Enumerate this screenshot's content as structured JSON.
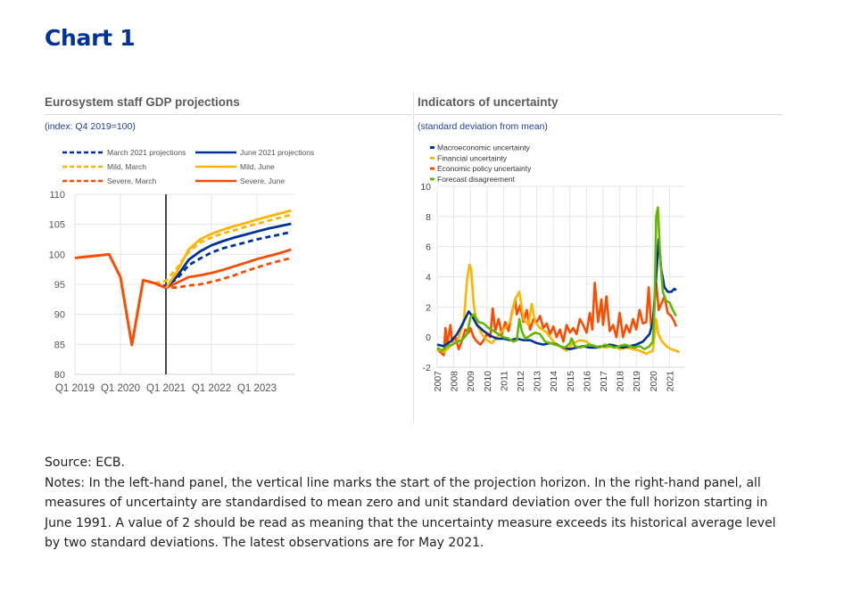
{
  "page": {
    "title": "Chart 1",
    "source": "Source: ECB.",
    "notes": "Notes: In the left-hand panel, the vertical line marks the start of the projection horizon. In the right-hand panel, all measures of uncertainty are standardised to mean zero and unit standard deviation over the full horizon starting in June 1991. A value of 2 should be read as meaning that the uncertainty measure exceeds its historical average level by two standard deviations. The latest observations are for May 2021."
  },
  "chart_data": [
    {
      "type": "line",
      "title": "Eurosystem staff GDP projections",
      "subtitle": "(index: Q4 2019=100)",
      "xlabel": "",
      "ylabel": "",
      "ylim": [
        80,
        110
      ],
      "yticks": [
        80,
        85,
        90,
        95,
        100,
        105,
        110
      ],
      "xticks": [
        "Q1 2019",
        "Q1 2020",
        "Q1 2021",
        "Q1 2022",
        "Q1 2023"
      ],
      "x_range_quarters": [
        "Q1 2019",
        "Q4 2023"
      ],
      "grid": true,
      "legend_position": "top",
      "annotation": "vertical line at Q1 2021 marking start of projection horizon",
      "vline_at": "Q1 2021",
      "quarters": [
        "Q1 2019",
        "Q2 2019",
        "Q3 2019",
        "Q4 2019",
        "Q1 2020",
        "Q2 2020",
        "Q3 2020",
        "Q4 2020",
        "Q1 2021",
        "Q2 2021",
        "Q3 2021",
        "Q4 2021",
        "Q1 2022",
        "Q2 2022",
        "Q3 2022",
        "Q4 2022",
        "Q1 2023",
        "Q2 2023",
        "Q3 2023",
        "Q4 2023"
      ],
      "history": {
        "name": "Historical GDP",
        "color": "#ff4b00",
        "values": [
          99.4,
          99.6,
          99.8,
          100.0,
          96.2,
          84.9,
          95.7,
          95.2,
          94.4
        ]
      },
      "series": [
        {
          "name": "March 2021 projections",
          "color": "#003299",
          "dash": true,
          "start_index": 7,
          "values": [
            95.2,
            94.7,
            96.0,
            98.2,
            99.3,
            100.3,
            101.0,
            101.5,
            102.0,
            102.5,
            102.9,
            103.3,
            103.7
          ]
        },
        {
          "name": "June 2021 projections",
          "color": "#003299",
          "dash": false,
          "start_index": 8,
          "values": [
            94.4,
            96.4,
            99.1,
            100.5,
            101.5,
            102.2,
            102.8,
            103.3,
            103.8,
            104.3,
            104.7,
            105.1
          ]
        },
        {
          "name": "Mild, March",
          "color": "#ffb400",
          "dash": true,
          "start_index": 7,
          "values": [
            95.2,
            95.6,
            97.8,
            100.4,
            102.0,
            102.8,
            103.5,
            104.0,
            104.6,
            105.1,
            105.6,
            106.1,
            106.6
          ]
        },
        {
          "name": "Mild, June",
          "color": "#ffb400",
          "dash": false,
          "start_index": 8,
          "values": [
            94.4,
            97.2,
            100.8,
            102.5,
            103.4,
            104.1,
            104.7,
            105.2,
            105.8,
            106.3,
            106.8,
            107.3
          ]
        },
        {
          "name": "Severe, March",
          "color": "#ff4b00",
          "dash": true,
          "start_index": 7,
          "values": [
            95.2,
            94.4,
            94.5,
            94.8,
            95.0,
            95.4,
            95.9,
            96.5,
            97.2,
            97.8,
            98.4,
            98.9,
            99.4
          ]
        },
        {
          "name": "Severe, June",
          "color": "#ff4b00",
          "dash": false,
          "start_index": 8,
          "values": [
            94.4,
            95.3,
            96.2,
            96.5,
            96.9,
            97.4,
            98.0,
            98.6,
            99.2,
            99.7,
            100.2,
            100.8
          ]
        }
      ]
    },
    {
      "type": "line",
      "title": "Indicators of uncertainty",
      "subtitle": "(standard deviation from mean)",
      "xlabel": "",
      "ylabel": "",
      "ylim": [
        -2,
        10
      ],
      "yticks": [
        -2,
        0,
        2,
        4,
        6,
        8,
        10
      ],
      "xticks": [
        "2007",
        "2008",
        "2009",
        "2010",
        "2011",
        "2012",
        "2013",
        "2014",
        "2015",
        "2016",
        "2017",
        "2018",
        "2019",
        "2020",
        "2021"
      ],
      "x_range": [
        2007.0,
        2021.9
      ],
      "grid": true,
      "legend_position": "top-left",
      "series": [
        {
          "name": "Macroeconomic uncertainty",
          "color": "#003299",
          "x": [
            2007.0,
            2007.4,
            2007.8,
            2008.2,
            2008.5,
            2008.9,
            2009.1,
            2009.4,
            2009.8,
            2010.2,
            2010.6,
            2011.0,
            2011.4,
            2011.8,
            2012.2,
            2012.6,
            2013.0,
            2013.4,
            2013.8,
            2014.2,
            2014.6,
            2015.0,
            2015.4,
            2015.8,
            2016.2,
            2016.6,
            2017.0,
            2017.4,
            2017.8,
            2018.2,
            2018.6,
            2019.0,
            2019.4,
            2019.8,
            2020.0,
            2020.2,
            2020.35,
            2020.5,
            2020.7,
            2020.9,
            2021.1,
            2021.3,
            2021.4
          ],
          "values": [
            -0.5,
            -0.6,
            -0.3,
            0.2,
            0.8,
            1.7,
            1.4,
            0.8,
            0.4,
            0.1,
            -0.1,
            -0.1,
            -0.2,
            -0.1,
            -0.2,
            -0.2,
            -0.4,
            -0.5,
            -0.4,
            -0.5,
            -0.7,
            -0.8,
            -0.7,
            -0.6,
            -0.7,
            -0.7,
            -0.6,
            -0.5,
            -0.6,
            -0.7,
            -0.6,
            -0.5,
            -0.3,
            0.2,
            1.0,
            4.0,
            6.5,
            4.5,
            3.3,
            3.0,
            3.0,
            3.2,
            3.1
          ]
        },
        {
          "name": "Financial uncertainty",
          "color": "#ffb400",
          "x": [
            2007.0,
            2007.4,
            2007.8,
            2008.2,
            2008.6,
            2008.8,
            2008.95,
            2009.05,
            2009.2,
            2009.4,
            2009.7,
            2010.0,
            2010.3,
            2010.6,
            2011.0,
            2011.4,
            2011.7,
            2011.95,
            2012.2,
            2012.5,
            2012.7,
            2012.9,
            2013.2,
            2013.6,
            2014.0,
            2014.4,
            2014.8,
            2015.2,
            2015.6,
            2016.0,
            2016.4,
            2016.8,
            2017.2,
            2017.6,
            2018.0,
            2018.4,
            2018.8,
            2019.2,
            2019.6,
            2020.0,
            2020.2,
            2020.3,
            2020.5,
            2020.8,
            2021.1,
            2021.4,
            2021.6
          ],
          "values": [
            -0.8,
            -1.0,
            -0.6,
            -0.3,
            1.0,
            3.8,
            4.8,
            4.5,
            2.2,
            0.8,
            0.2,
            -0.2,
            -0.4,
            0.0,
            0.5,
            1.0,
            2.5,
            3.0,
            1.2,
            0.8,
            2.2,
            1.0,
            0.6,
            0.3,
            -0.3,
            -0.6,
            -0.9,
            -0.4,
            -0.2,
            -0.3,
            -0.7,
            -0.6,
            -0.7,
            -0.5,
            -0.8,
            -0.7,
            -0.8,
            -0.9,
            -1.1,
            -0.9,
            1.2,
            0.3,
            -0.2,
            -0.6,
            -0.8,
            -0.9,
            -1.0
          ]
        },
        {
          "name": "Economic policy uncertainty",
          "color": "#ff4b00",
          "x": [
            2007.0,
            2007.2,
            2007.4,
            2007.5,
            2007.6,
            2007.8,
            2007.9,
            2008.1,
            2008.3,
            2008.5,
            2008.7,
            2008.9,
            2009.0,
            2009.2,
            2009.4,
            2009.6,
            2009.8,
            2010.0,
            2010.2,
            2010.35,
            2010.5,
            2010.7,
            2010.9,
            2011.1,
            2011.3,
            2011.5,
            2011.7,
            2011.8,
            2012.0,
            2012.2,
            2012.4,
            2012.6,
            2012.8,
            2013.0,
            2013.2,
            2013.4,
            2013.6,
            2013.8,
            2014.0,
            2014.2,
            2014.4,
            2014.6,
            2014.8,
            2015.0,
            2015.2,
            2015.4,
            2015.6,
            2015.8,
            2016.0,
            2016.2,
            2016.35,
            2016.5,
            2016.7,
            2016.9,
            2017.0,
            2017.2,
            2017.4,
            2017.6,
            2017.8,
            2018.0,
            2018.2,
            2018.4,
            2018.6,
            2018.8,
            2019.0,
            2019.2,
            2019.4,
            2019.6,
            2019.75,
            2019.9,
            2020.0,
            2020.2,
            2020.35,
            2020.5,
            2020.7,
            2020.9,
            2021.1,
            2021.3,
            2021.4
          ],
          "values": [
            -0.8,
            -1.0,
            -1.2,
            0.6,
            -0.5,
            0.8,
            -0.3,
            0.0,
            -0.8,
            -0.2,
            0.5,
            0.3,
            0.6,
            0.0,
            -0.3,
            -0.5,
            -0.2,
            0.2,
            0.0,
            1.9,
            0.4,
            1.2,
            0.2,
            1.0,
            0.4,
            1.6,
            2.5,
            1.5,
            2.1,
            1.0,
            1.8,
            0.5,
            1.2,
            1.0,
            1.4,
            0.6,
            0.9,
            0.2,
            0.7,
            0.0,
            0.5,
            -0.3,
            0.8,
            0.3,
            0.6,
            0.2,
            1.2,
            0.8,
            0.3,
            1.6,
            0.5,
            3.6,
            1.0,
            2.5,
            0.8,
            2.7,
            0.4,
            0.8,
            0.0,
            1.6,
            0.0,
            0.8,
            0.3,
            1.2,
            0.5,
            1.8,
            0.9,
            1.0,
            3.3,
            0.7,
            1.0,
            3.6,
            1.8,
            2.2,
            2.7,
            1.6,
            1.4,
            1.0,
            0.7
          ]
        },
        {
          "name": "Forecast disagreement",
          "color": "#65b800",
          "x": [
            2007.0,
            2007.3,
            2007.6,
            2007.9,
            2008.2,
            2008.5,
            2008.8,
            2009.0,
            2009.2,
            2009.5,
            2009.8,
            2010.1,
            2010.4,
            2010.7,
            2011.0,
            2011.3,
            2011.6,
            2011.8,
            2011.95,
            2012.1,
            2012.3,
            2012.6,
            2012.9,
            2013.2,
            2013.5,
            2013.8,
            2014.1,
            2014.4,
            2014.7,
            2015.0,
            2015.1,
            2015.3,
            2015.6,
            2015.9,
            2016.2,
            2016.5,
            2016.8,
            2017.1,
            2017.4,
            2017.7,
            2018.0,
            2018.3,
            2018.6,
            2018.9,
            2019.2,
            2019.5,
            2019.8,
            2020.0,
            2020.1,
            2020.2,
            2020.3,
            2020.45,
            2020.6,
            2020.8,
            2021.0,
            2021.2,
            2021.4
          ],
          "values": [
            -0.7,
            -0.9,
            -0.6,
            -0.5,
            -0.3,
            -0.2,
            0.2,
            1.3,
            1.5,
            1.0,
            0.9,
            0.6,
            0.4,
            0.2,
            0.0,
            -0.1,
            -0.3,
            -0.2,
            1.2,
            0.4,
            -0.1,
            0.1,
            0.3,
            0.2,
            -0.3,
            -0.4,
            -0.5,
            -0.6,
            -0.7,
            -0.4,
            -0.1,
            -0.6,
            -0.7,
            -0.6,
            -0.5,
            -0.6,
            -0.7,
            -0.5,
            -0.6,
            -0.7,
            -0.6,
            -0.5,
            -0.6,
            -0.7,
            -0.6,
            -0.8,
            -0.6,
            -0.3,
            2.0,
            8.0,
            8.6,
            5.0,
            3.0,
            2.4,
            2.3,
            1.8,
            1.4
          ]
        }
      ]
    }
  ]
}
